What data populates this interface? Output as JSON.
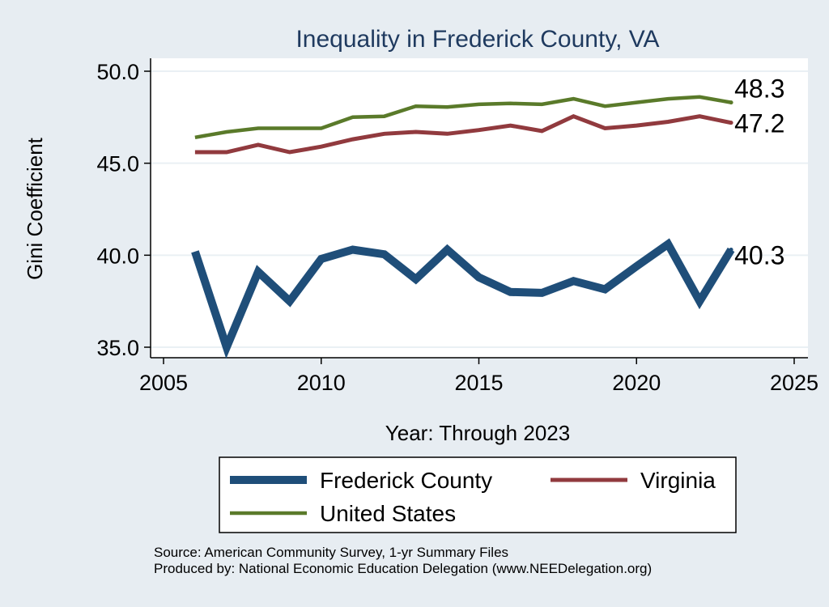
{
  "chart_data": {
    "type": "line",
    "title": "Inequality in Frederick County, VA",
    "xlabel": "Year: Through 2023",
    "ylabel": "Gini Coefficient",
    "xlim": [
      2005,
      2025
    ],
    "ylim": [
      35,
      50
    ],
    "x_ticks": [
      2005,
      2010,
      2015,
      2020,
      2025
    ],
    "x_tick_labels": [
      "2005",
      "2010",
      "2015",
      "2020",
      "2025"
    ],
    "y_ticks": [
      35,
      40,
      45,
      50
    ],
    "y_tick_labels": [
      "35.0",
      "40.0",
      "45.0",
      "50.0"
    ],
    "grid": true,
    "legend_position": "bottom",
    "x": [
      2006,
      2007,
      2008,
      2009,
      2010,
      2011,
      2012,
      2013,
      2014,
      2015,
      2016,
      2017,
      2018,
      2019,
      2020,
      2021,
      2022,
      2023
    ],
    "series": [
      {
        "name": "Frederick County",
        "color": "#1f4e79",
        "values": [
          40.2,
          35.0,
          39.1,
          37.5,
          39.8,
          40.3,
          40.05,
          38.7,
          40.3,
          38.8,
          38.0,
          37.95,
          38.6,
          38.15,
          39.4,
          40.6,
          37.5,
          40.3
        ],
        "end_label": "40.3"
      },
      {
        "name": "Virginia",
        "color": "#913a3e",
        "values": [
          45.6,
          45.6,
          46.0,
          45.6,
          45.9,
          46.3,
          46.6,
          46.7,
          46.6,
          46.8,
          47.05,
          46.75,
          47.55,
          46.9,
          47.05,
          47.25,
          47.55,
          47.2
        ],
        "end_label": "47.2"
      },
      {
        "name": "United States",
        "color": "#5a7a2a",
        "values": [
          46.4,
          46.7,
          46.9,
          46.9,
          46.9,
          47.5,
          47.55,
          48.1,
          48.05,
          48.2,
          48.25,
          48.2,
          48.5,
          48.1,
          48.3,
          48.5,
          48.6,
          48.3
        ],
        "end_label": "48.3"
      }
    ],
    "source_lines": [
      "Source: American Community Survey, 1-yr Summary Files",
      "Produced by: National Economic Education Delegation (www.NEEDelegation.org)"
    ]
  }
}
